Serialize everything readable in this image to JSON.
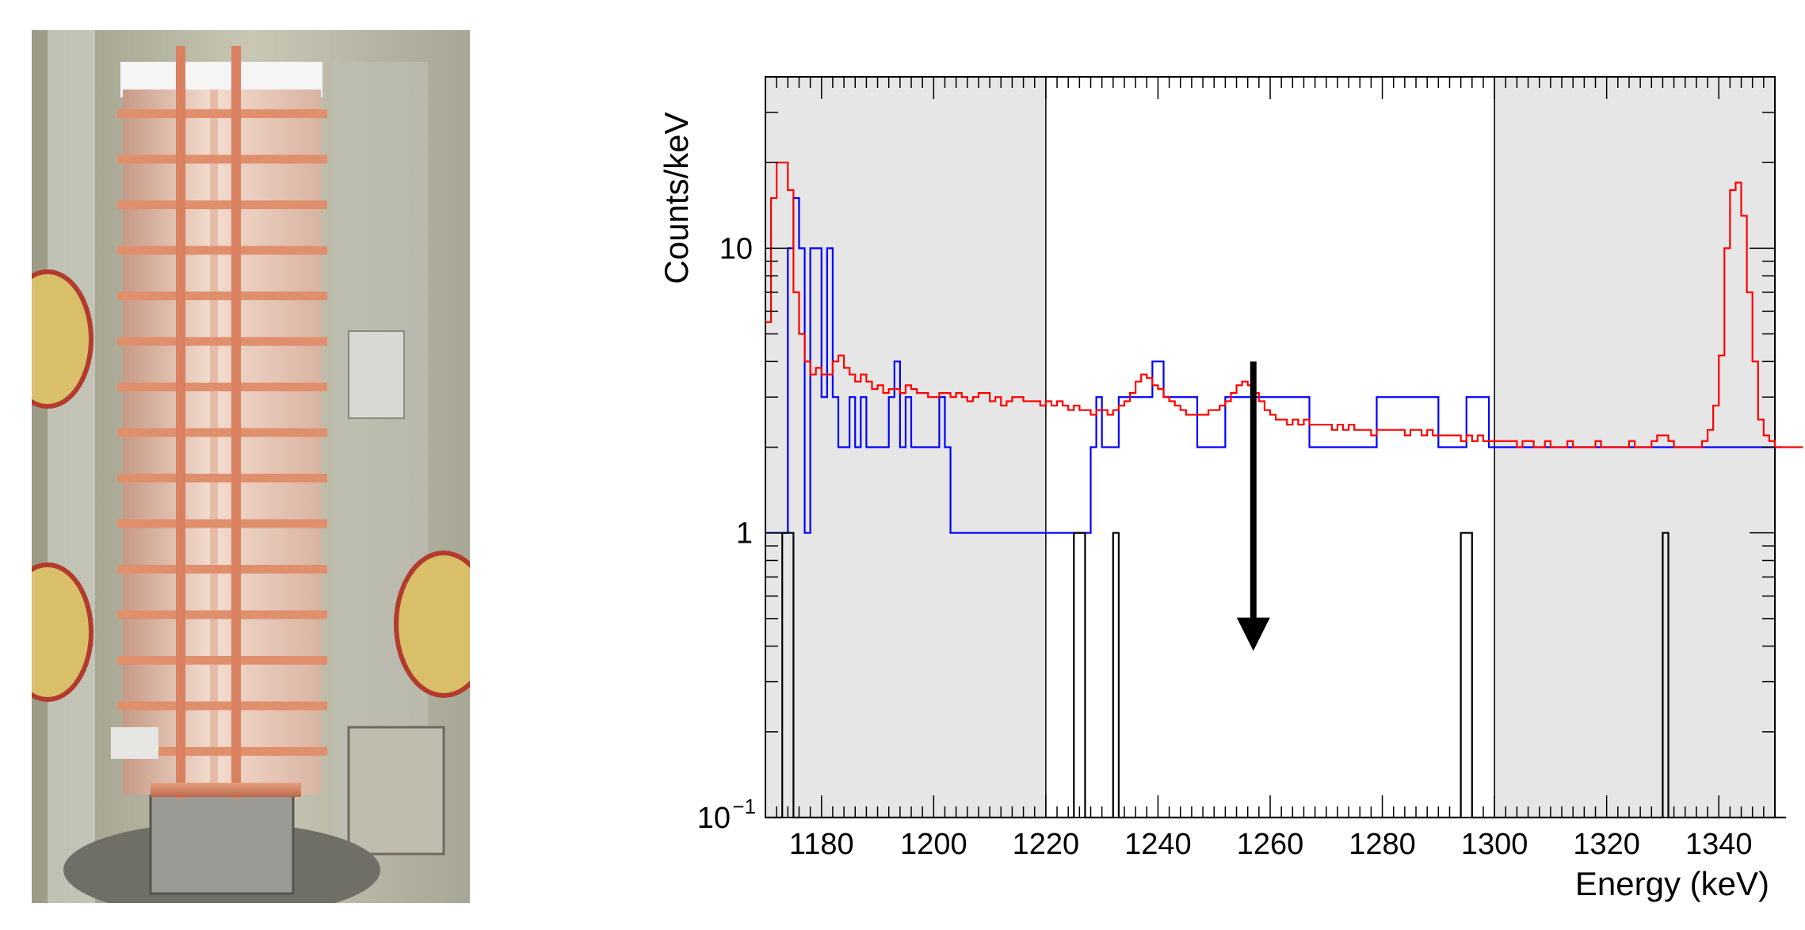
{
  "photo": {
    "subject": "copper-framed-crystal-tower-photo"
  },
  "chart_data": {
    "type": "line",
    "title": "",
    "xlabel": "Energy (keV)",
    "ylabel": "Counts/keV",
    "xlim": [
      1170,
      1350
    ],
    "ylim": [
      0.1,
      40
    ],
    "y_scale": "log",
    "x_ticks": [
      1180,
      1200,
      1220,
      1240,
      1260,
      1280,
      1300,
      1320,
      1340
    ],
    "y_ticks": [
      {
        "value": 0.1,
        "label": "10",
        "exp": "−1"
      },
      {
        "value": 1,
        "label": "1",
        "exp": ""
      },
      {
        "value": 10,
        "label": "10",
        "exp": ""
      }
    ],
    "shaded_regions": [
      [
        1170,
        1220
      ],
      [
        1300,
        1350
      ]
    ],
    "arrow": {
      "x": 1257,
      "y_from": 4,
      "y_to": 0.4,
      "color": "#000000"
    },
    "bin_width": 1,
    "series": [
      {
        "color": "#0000ff",
        "x_start": 1170,
        "values": [
          1,
          1,
          1,
          1,
          10,
          15,
          10,
          1,
          10,
          10,
          3,
          10,
          3,
          2,
          2,
          3,
          2,
          3,
          2,
          2,
          2,
          2,
          3,
          4,
          2,
          3,
          2,
          2,
          2,
          2,
          2,
          3,
          2,
          1,
          1,
          1,
          1,
          1,
          1,
          1,
          1,
          1,
          1,
          1,
          1,
          1,
          1,
          1,
          1,
          1,
          1,
          1,
          1,
          1,
          1,
          1,
          1,
          1,
          2,
          3,
          2,
          2,
          2,
          3,
          3,
          3,
          3,
          3,
          3,
          4,
          4,
          3,
          3,
          3,
          3,
          3,
          3,
          2,
          2,
          2,
          2,
          2,
          3,
          3,
          3,
          3,
          3,
          3,
          3,
          3,
          3,
          3,
          3,
          3,
          3,
          3,
          3,
          2,
          2,
          2,
          2,
          2,
          2,
          2,
          2,
          2,
          2,
          2,
          2,
          3,
          3,
          3,
          3,
          3,
          3,
          3,
          3,
          3,
          3,
          3,
          2,
          2,
          2,
          2,
          2,
          3,
          3,
          3,
          3,
          2,
          2,
          2,
          2,
          2,
          2,
          2,
          2,
          2,
          2,
          2,
          2,
          2,
          2,
          2,
          2,
          2,
          2,
          2,
          2,
          2,
          2,
          2,
          2,
          2,
          2,
          2,
          2,
          2,
          2,
          2,
          2,
          2,
          2,
          2,
          2,
          2,
          2,
          2,
          2,
          2,
          2,
          2,
          2,
          2,
          2,
          2,
          2,
          2,
          2,
          2,
          2
        ]
      },
      {
        "color": "#ff0000",
        "x_start": 1170,
        "values": [
          5.5,
          15,
          20,
          20,
          16,
          7,
          5,
          4,
          3.6,
          3.8,
          3.6,
          3.6,
          4,
          4.2,
          3.8,
          3.6,
          3.4,
          3.6,
          3.4,
          3.2,
          3.3,
          3.1,
          3.2,
          3.2,
          3.1,
          3.3,
          3.2,
          3.1,
          3.1,
          3.0,
          3.0,
          3.1,
          3.1,
          3.0,
          3.1,
          3.0,
          2.9,
          3.0,
          3.1,
          3.1,
          2.9,
          3.0,
          2.8,
          2.9,
          3.0,
          3.0,
          2.9,
          2.9,
          2.9,
          2.8,
          2.9,
          2.8,
          2.9,
          2.8,
          2.7,
          2.8,
          2.7,
          2.7,
          2.6,
          2.7,
          2.7,
          2.6,
          2.7,
          2.8,
          2.9,
          3.1,
          3.4,
          3.6,
          3.5,
          3.3,
          3.2,
          3.0,
          2.9,
          2.8,
          2.7,
          2.6,
          2.6,
          2.6,
          2.6,
          2.7,
          2.7,
          2.8,
          2.9,
          3.1,
          3.3,
          3.4,
          3.3,
          3.1,
          2.9,
          2.7,
          2.6,
          2.5,
          2.5,
          2.4,
          2.5,
          2.4,
          2.5,
          2.4,
          2.4,
          2.4,
          2.4,
          2.3,
          2.4,
          2.3,
          2.4,
          2.3,
          2.3,
          2.3,
          2.2,
          2.3,
          2.3,
          2.3,
          2.3,
          2.3,
          2.2,
          2.3,
          2.3,
          2.2,
          2.3,
          2.2,
          2.2,
          2.2,
          2.2,
          2.2,
          2.1,
          2.2,
          2.1,
          2.2,
          2.1,
          2.1,
          2.1,
          2.1,
          2.1,
          2.1,
          2.0,
          2.1,
          2.1,
          2.0,
          2.0,
          2.1,
          2.0,
          2.0,
          2.0,
          2.1,
          2.0,
          2.0,
          2.0,
          2.0,
          2.1,
          2.0,
          2.0,
          2.0,
          2.0,
          2.0,
          2.1,
          2.0,
          2.0,
          2.0,
          2.1,
          2.2,
          2.2,
          2.1,
          2.0,
          2.0,
          2.0,
          2.0,
          2.0,
          2.1,
          2.3,
          2.8,
          4.2,
          10,
          16,
          17,
          13,
          7,
          4,
          2.5,
          2.2,
          2.1,
          2.0,
          2.0,
          2.0,
          2.0,
          2.0
        ]
      },
      {
        "color": "#000000",
        "x_start": 1170,
        "values": [
          0.05,
          0.05,
          0.05,
          1,
          1,
          0.05,
          0.05,
          0.05,
          0.05,
          0.05,
          0.05,
          0.05,
          0.05,
          0.05,
          0.05,
          0.05,
          0.05,
          0.05,
          0.05,
          0.05,
          0.05,
          0.05,
          0.05,
          0.05,
          0.05,
          0.05,
          0.05,
          0.05,
          0.05,
          0.05,
          0.05,
          0.05,
          0.05,
          0.05,
          0.05,
          0.05,
          0.05,
          0.05,
          0.05,
          0.05,
          0.05,
          0.05,
          0.05,
          0.05,
          0.05,
          0.05,
          0.05,
          0.05,
          0.05,
          0.05,
          0.05,
          0.05,
          0.05,
          0.05,
          0.05,
          1,
          1,
          0.05,
          0.05,
          0.05,
          0.05,
          0.05,
          1,
          0.05,
          0.05,
          0.05,
          0.05,
          0.05,
          0.05,
          0.05,
          0.05,
          0.05,
          0.05,
          0.05,
          0.05,
          0.05,
          0.05,
          0.05,
          0.05,
          0.05,
          0.05,
          0.05,
          0.05,
          0.05,
          0.05,
          0.05,
          0.05,
          0.05,
          0.05,
          0.05,
          0.05,
          0.05,
          0.05,
          0.05,
          0.05,
          0.05,
          0.05,
          0.05,
          0.05,
          0.05,
          0.05,
          0.05,
          0.05,
          0.05,
          0.05,
          0.05,
          0.05,
          0.05,
          0.05,
          0.05,
          0.05,
          0.05,
          0.05,
          0.05,
          0.05,
          0.05,
          0.05,
          0.05,
          0.05,
          0.05,
          0.05,
          0.05,
          0.05,
          0.05,
          1,
          1,
          0.05,
          0.05,
          0.05,
          0.05,
          0.05,
          0.05,
          0.05,
          0.05,
          0.05,
          0.05,
          0.05,
          0.05,
          0.05,
          0.05,
          0.05,
          0.05,
          0.05,
          0.05,
          0.05,
          0.05,
          0.05,
          0.05,
          0.05,
          0.05,
          0.05,
          0.05,
          0.05,
          0.05,
          0.05,
          0.05,
          0.05,
          0.05,
          0.05,
          0.05,
          1,
          0.05,
          0.05,
          0.05,
          0.05,
          0.05,
          0.05,
          0.05,
          0.05,
          0.05,
          0.05,
          0.05,
          0.05,
          0.05,
          0.05,
          0.05,
          0.05,
          0.05,
          0.05,
          0.05,
          0.05,
          0.05
        ]
      }
    ]
  }
}
